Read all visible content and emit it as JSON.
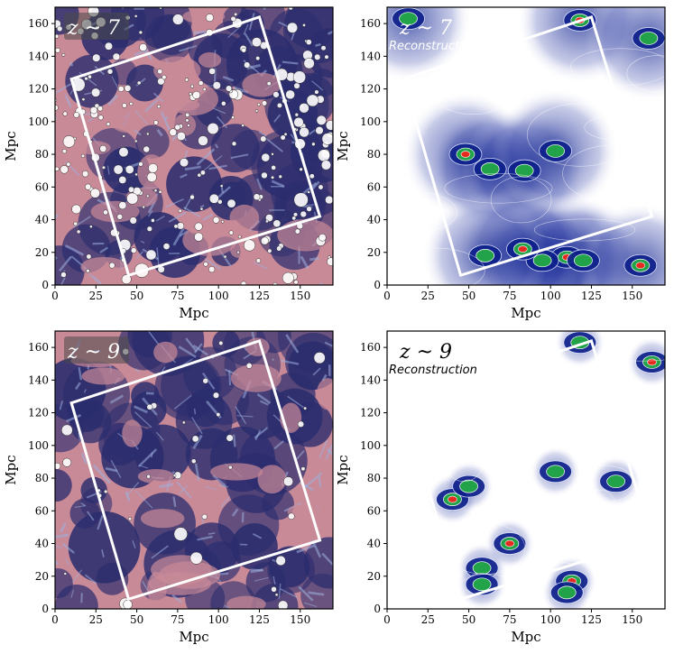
{
  "panels": [
    {
      "id": "sim7",
      "kind": "simulation",
      "label": "z ~ 7",
      "subtitle": "",
      "show_ylabel": true,
      "seed": 7
    },
    {
      "id": "rec7",
      "kind": "reconstruction",
      "label": "z ~ 7",
      "subtitle": "Reconstruction",
      "show_ylabel": true,
      "seed": 7
    },
    {
      "id": "sim9",
      "kind": "simulation",
      "label": "z ~ 9",
      "subtitle": "",
      "show_ylabel": true,
      "seed": 9
    },
    {
      "id": "rec9",
      "kind": "reconstruction",
      "label": "z ~ 9",
      "subtitle": "Reconstruction",
      "show_ylabel": true,
      "seed": 9
    }
  ],
  "axes": {
    "xlabel": "Mpc",
    "ylabel": "Mpc",
    "x_ticks": [
      0,
      25,
      50,
      75,
      100,
      125,
      150
    ],
    "y_ticks": [
      0,
      20,
      40,
      60,
      80,
      100,
      120,
      140,
      160
    ],
    "range": [
      0,
      170
    ]
  },
  "survey_box": {
    "corners_mpc": [
      [
        10,
        126
      ],
      [
        125,
        164
      ],
      [
        162,
        42
      ],
      [
        45,
        6
      ]
    ]
  },
  "sources": {
    "z7": [
      [
        48,
        80
      ],
      [
        63,
        71
      ],
      [
        84,
        70
      ],
      [
        118,
        162
      ],
      [
        160,
        151
      ],
      [
        13,
        163
      ],
      [
        110,
        17
      ],
      [
        120,
        15
      ],
      [
        95,
        15
      ],
      [
        83,
        22
      ],
      [
        60,
        18
      ],
      [
        103,
        82
      ],
      [
        155,
        12
      ]
    ],
    "z9": [
      [
        40,
        67
      ],
      [
        50,
        75
      ],
      [
        118,
        163
      ],
      [
        162,
        151
      ],
      [
        103,
        84
      ],
      [
        140,
        78
      ],
      [
        113,
        17
      ],
      [
        110,
        10
      ],
      [
        58,
        25
      ],
      [
        75,
        40
      ],
      [
        58,
        15
      ]
    ]
  },
  "colors": {
    "sim_bg": "#c98a98",
    "sim_void": "#2b2d6e",
    "sim_filament": "#9db0de",
    "rec_high": "#0c1f8a",
    "rec_mid": "#22a34a",
    "rec_peak": "#e52a1f",
    "box": "#ffffff"
  }
}
